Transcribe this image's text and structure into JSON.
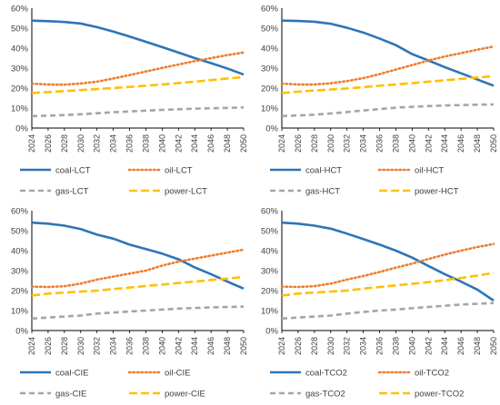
{
  "colors": {
    "coal": "#2E75B6",
    "oil": "#ED7D31",
    "gas": "#A5A5A5",
    "power": "#FFC000",
    "axis": "#000000",
    "tick_text": "#404040"
  },
  "chart_data": [
    {
      "type": "line",
      "title": "",
      "xlabel": "",
      "ylabel": "",
      "x": [
        2024,
        2026,
        2028,
        2030,
        2032,
        2034,
        2036,
        2038,
        2040,
        2042,
        2044,
        2046,
        2048,
        2050
      ],
      "x_tick_labels": [
        "2024",
        "2026",
        "2028",
        "2030",
        "2032",
        "2034",
        "2036",
        "2038",
        "2040",
        "2042",
        "2044",
        "2046",
        "2048",
        "2050"
      ],
      "y_tick_labels": [
        "0%",
        "10%",
        "20%",
        "30%",
        "40%",
        "50%",
        "60%"
      ],
      "ylim": [
        0,
        60
      ],
      "grid": false,
      "legend_position": "bottom",
      "series": [
        {
          "name": "coal-LCT",
          "style": "solid",
          "values": [
            53.8,
            53.5,
            53.1,
            52.3,
            50.5,
            48.3,
            45.8,
            43.2,
            40.5,
            37.8,
            35.0,
            32.5,
            29.8,
            26.8
          ]
        },
        {
          "name": "oil-LCT",
          "style": "dotted",
          "values": [
            22.2,
            21.8,
            21.7,
            22.3,
            23.2,
            24.8,
            26.5,
            28.3,
            30.1,
            31.8,
            33.5,
            35.0,
            36.5,
            37.8
          ]
        },
        {
          "name": "gas-LCT",
          "style": "dashed",
          "values": [
            6.0,
            6.2,
            6.5,
            6.9,
            7.4,
            7.9,
            8.3,
            8.7,
            9.1,
            9.4,
            9.7,
            9.9,
            10.1,
            10.3
          ]
        },
        {
          "name": "power-LCT",
          "style": "longdash",
          "values": [
            17.5,
            18.0,
            18.5,
            19.0,
            19.5,
            20.0,
            20.6,
            21.2,
            21.8,
            22.5,
            23.2,
            24.0,
            24.8,
            25.5
          ]
        }
      ]
    },
    {
      "type": "line",
      "title": "",
      "xlabel": "",
      "ylabel": "",
      "x": [
        2024,
        2026,
        2028,
        2030,
        2032,
        2034,
        2036,
        2038,
        2040,
        2042,
        2044,
        2046,
        2048,
        2050
      ],
      "x_tick_labels": [
        "2024",
        "2026",
        "2028",
        "2030",
        "2032",
        "2034",
        "2036",
        "2038",
        "2040",
        "2042",
        "2044",
        "2046",
        "2048",
        "2050"
      ],
      "y_tick_labels": [
        "0%",
        "10%",
        "20%",
        "30%",
        "40%",
        "50%",
        "60%"
      ],
      "ylim": [
        0,
        60
      ],
      "grid": false,
      "legend_position": "bottom",
      "series": [
        {
          "name": "coal-HCT",
          "style": "solid",
          "values": [
            53.8,
            53.6,
            53.2,
            52.2,
            50.2,
            47.8,
            44.8,
            41.5,
            37.0,
            33.8,
            30.5,
            27.4,
            24.3,
            21.2
          ]
        },
        {
          "name": "oil-HCT",
          "style": "dotted",
          "values": [
            22.2,
            21.8,
            21.8,
            22.4,
            23.5,
            25.0,
            27.0,
            29.3,
            31.5,
            33.8,
            35.8,
            37.5,
            39.2,
            40.8
          ]
        },
        {
          "name": "gas-HCT",
          "style": "dashed",
          "values": [
            6.0,
            6.3,
            6.7,
            7.3,
            8.0,
            8.8,
            9.5,
            10.2,
            10.6,
            11.0,
            11.3,
            11.5,
            11.7,
            11.8
          ]
        },
        {
          "name": "power-HCT",
          "style": "longdash",
          "values": [
            17.5,
            18.2,
            18.8,
            19.3,
            19.8,
            20.5,
            21.2,
            21.8,
            22.5,
            23.2,
            23.9,
            24.6,
            25.3,
            26.0
          ]
        }
      ]
    },
    {
      "type": "line",
      "title": "",
      "xlabel": "",
      "ylabel": "",
      "x": [
        2024,
        2026,
        2028,
        2030,
        2032,
        2034,
        2036,
        2038,
        2040,
        2042,
        2044,
        2046,
        2048,
        2050
      ],
      "x_tick_labels": [
        "2024",
        "2026",
        "2028",
        "2030",
        "2032",
        "2034",
        "2036",
        "2038",
        "2040",
        "2042",
        "2044",
        "2046",
        "2048",
        "2050"
      ],
      "y_tick_labels": [
        "0%",
        "10%",
        "20%",
        "30%",
        "40%",
        "50%",
        "60%"
      ],
      "ylim": [
        0,
        60
      ],
      "grid": false,
      "legend_position": "bottom",
      "series": [
        {
          "name": "coal-CIE",
          "style": "solid",
          "values": [
            54.0,
            53.5,
            52.5,
            50.8,
            48.0,
            46.0,
            43.0,
            40.8,
            38.5,
            35.7,
            31.6,
            28.2,
            24.5,
            21.0
          ]
        },
        {
          "name": "oil-CIE",
          "style": "dotted",
          "values": [
            22.0,
            21.8,
            22.2,
            23.5,
            25.5,
            27.0,
            28.5,
            30.0,
            32.5,
            34.5,
            36.0,
            37.5,
            39.0,
            40.5
          ]
        },
        {
          "name": "gas-CIE",
          "style": "dashed",
          "values": [
            6.0,
            6.5,
            7.0,
            7.5,
            8.5,
            9.0,
            9.5,
            10.0,
            10.5,
            11.0,
            11.3,
            11.6,
            11.8,
            12.0
          ]
        },
        {
          "name": "power-CIE",
          "style": "longdash",
          "values": [
            17.5,
            18.5,
            19.0,
            19.5,
            20.0,
            20.8,
            21.5,
            22.3,
            23.0,
            23.8,
            24.5,
            25.3,
            26.0,
            26.8
          ]
        }
      ]
    },
    {
      "type": "line",
      "title": "",
      "xlabel": "",
      "ylabel": "",
      "x": [
        2024,
        2026,
        2028,
        2030,
        2032,
        2034,
        2036,
        2038,
        2040,
        2042,
        2044,
        2046,
        2048,
        2050
      ],
      "x_tick_labels": [
        "2024",
        "2026",
        "2028",
        "2030",
        "2032",
        "2034",
        "2036",
        "2038",
        "2040",
        "2042",
        "2044",
        "2046",
        "2048",
        "2050"
      ],
      "y_tick_labels": [
        "0%",
        "10%",
        "20%",
        "30%",
        "40%",
        "50%",
        "60%"
      ],
      "ylim": [
        0,
        60
      ],
      "grid": false,
      "legend_position": "bottom",
      "series": [
        {
          "name": "coal-TCO2",
          "style": "solid",
          "values": [
            54.0,
            53.5,
            52.5,
            51.0,
            48.5,
            45.8,
            43.0,
            40.0,
            36.5,
            32.3,
            28.2,
            24.5,
            20.5,
            15.0
          ]
        },
        {
          "name": "oil-TCO2",
          "style": "dotted",
          "values": [
            22.0,
            21.8,
            22.2,
            23.5,
            25.5,
            27.3,
            29.3,
            31.5,
            33.5,
            35.8,
            38.0,
            40.0,
            41.8,
            43.3
          ]
        },
        {
          "name": "gas-TCO2",
          "style": "dashed",
          "values": [
            6.0,
            6.5,
            7.0,
            7.5,
            8.5,
            9.3,
            10.0,
            10.5,
            11.2,
            11.8,
            12.4,
            13.0,
            13.4,
            13.8
          ]
        },
        {
          "name": "power-TCO2",
          "style": "longdash",
          "values": [
            17.5,
            18.5,
            19.0,
            19.5,
            20.0,
            21.0,
            21.8,
            22.6,
            23.4,
            24.2,
            25.2,
            26.3,
            27.5,
            28.8
          ]
        }
      ]
    }
  ]
}
